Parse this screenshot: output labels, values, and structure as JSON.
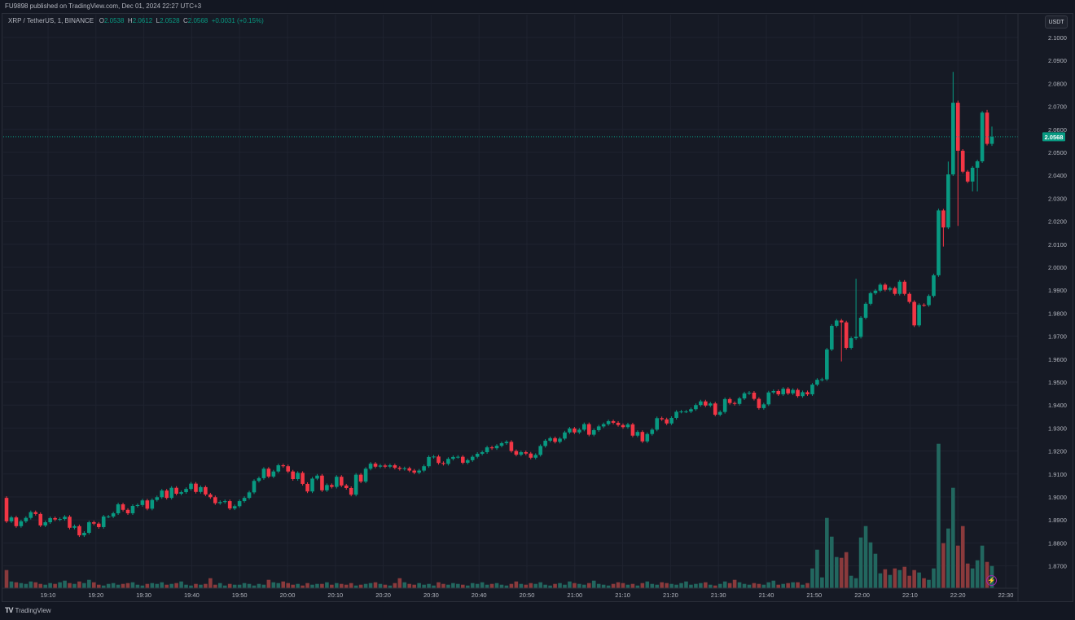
{
  "publish_line": "FU9898 published on TradingView.com, Dec 01, 2024 22:27 UTC+3",
  "legend": {
    "symbol": "XRP / TetherUS, 1, BINANCE",
    "o_label": "O",
    "o": "2.0538",
    "h_label": "H",
    "h": "2.0612",
    "l_label": "L",
    "l": "2.0528",
    "c_label": "C",
    "c": "2.0568",
    "change": "+0.0031 (+0.15%)"
  },
  "currency_button": "USDT",
  "last_price_label": "2.0568",
  "footer_brand": "TradingView",
  "footer_logo": "TV",
  "colors": {
    "up": "#089981",
    "down": "#f23645",
    "vol_up": "#22675f",
    "vol_down": "#8a3a3c",
    "background": "#161a25",
    "grid": "#1f2330"
  },
  "chart_data": {
    "type": "candlestick",
    "symbol": "XRP/USDT",
    "interval": "1m",
    "y_ticks": [
      "2.1000",
      "2.0900",
      "2.0800",
      "2.0700",
      "2.0600",
      "2.0500",
      "2.0400",
      "2.0300",
      "2.0200",
      "2.0100",
      "2.0000",
      "1.9900",
      "1.9800",
      "1.9700",
      "1.9600",
      "1.9500",
      "1.9400",
      "1.9300",
      "1.9200",
      "1.9100",
      "1.9000",
      "1.8900",
      "1.8800",
      "1.8700"
    ],
    "x_ticks": [
      "19:10",
      "19:20",
      "19:30",
      "19:40",
      "19:50",
      "20:00",
      "20:10",
      "20:20",
      "20:30",
      "20:40",
      "20:50",
      "21:00",
      "21:10",
      "21:20",
      "21:30",
      "21:40",
      "21:50",
      "22:00",
      "22:10",
      "22:20",
      "22:30"
    ],
    "ylim": [
      1.87,
      2.1
    ],
    "first_open": 1.8996,
    "closes": [
      1.8894,
      1.8911,
      1.8873,
      1.8894,
      1.8909,
      1.8934,
      1.8926,
      1.8876,
      1.889,
      1.8908,
      1.8902,
      1.8904,
      1.8914,
      1.8866,
      1.8873,
      1.8833,
      1.8844,
      1.889,
      1.8884,
      1.8869,
      1.8915,
      1.8915,
      1.8929,
      1.8968,
      1.8944,
      1.8929,
      1.8961,
      1.8965,
      1.8985,
      1.8949,
      1.8987,
      1.8999,
      1.9028,
      1.8996,
      1.904,
      1.9014,
      1.9021,
      1.9035,
      1.9058,
      1.9022,
      1.9043,
      1.9011,
      1.8999,
      1.8973,
      1.8978,
      1.8982,
      1.895,
      1.896,
      1.8982,
      1.8996,
      1.902,
      1.907,
      1.9082,
      1.9123,
      1.9089,
      1.9111,
      1.9138,
      1.9134,
      1.9111,
      1.9078,
      1.9105,
      1.9057,
      1.9024,
      1.908,
      1.9093,
      1.9029,
      1.9052,
      1.9044,
      1.9088,
      1.905,
      1.9039,
      1.901,
      1.9097,
      1.9067,
      1.9123,
      1.9145,
      1.9132,
      1.9137,
      1.9132,
      1.9138,
      1.9127,
      1.9122,
      1.9125,
      1.9115,
      1.9106,
      1.9115,
      1.9134,
      1.9174,
      1.9176,
      1.9148,
      1.9144,
      1.9166,
      1.9174,
      1.9175,
      1.9149,
      1.916,
      1.9175,
      1.9188,
      1.9195,
      1.9216,
      1.9212,
      1.9223,
      1.9234,
      1.924,
      1.92,
      1.9184,
      1.9195,
      1.9189,
      1.9171,
      1.9183,
      1.9222,
      1.9245,
      1.9256,
      1.924,
      1.9254,
      1.9281,
      1.9298,
      1.9281,
      1.9293,
      1.9317,
      1.9271,
      1.9291,
      1.9307,
      1.9317,
      1.933,
      1.9323,
      1.9313,
      1.9304,
      1.9316,
      1.9267,
      1.9283,
      1.9242,
      1.9274,
      1.9293,
      1.9343,
      1.9338,
      1.932,
      1.9344,
      1.9371,
      1.9372,
      1.9372,
      1.9382,
      1.94,
      1.9416,
      1.9398,
      1.9407,
      1.9358,
      1.937,
      1.9426,
      1.9409,
      1.9405,
      1.9429,
      1.9451,
      1.9454,
      1.9427,
      1.9387,
      1.9403,
      1.9455,
      1.9461,
      1.9447,
      1.9471,
      1.9451,
      1.9466,
      1.9439,
      1.9456,
      1.9447,
      1.9489,
      1.951,
      1.9512,
      1.9642,
      1.9745,
      1.9768,
      1.976,
      1.9649,
      1.9691,
      1.9697,
      1.978,
      1.9841,
      1.9887,
      1.9898,
      1.9924,
      1.9902,
      1.9909,
      1.9884,
      1.9937,
      1.9884,
      1.9849,
      1.9747,
      1.9836,
      1.9835,
      1.9875,
      1.9965,
      2.0247,
      2.0173,
      2.0404,
      2.0716,
      2.0507,
      2.0416,
      2.0373,
      2.0433,
      2.0461,
      2.0673,
      2.0537,
      2.0568
    ],
    "wick_default": 0.0007,
    "high_overrides": {
      "175": 1.995,
      "192": 2.0255,
      "194": 2.046,
      "195": 2.085,
      "196": 2.0725,
      "201": 2.068,
      "202": 2.0685,
      "203": 2.0612
    },
    "low_overrides": {
      "172": 1.959,
      "193": 2.009,
      "196": 2.018,
      "199": 2.033,
      "200": 2.033,
      "203": 2.0528
    },
    "volumes": [
      22,
      8,
      7,
      6,
      5,
      8,
      7,
      5,
      4,
      6,
      5,
      7,
      9,
      6,
      5,
      8,
      6,
      10,
      7,
      4,
      3,
      5,
      6,
      4,
      5,
      6,
      7,
      4,
      3,
      5,
      6,
      5,
      7,
      4,
      5,
      6,
      8,
      4,
      3,
      5,
      4,
      5,
      12,
      4,
      6,
      3,
      5,
      4,
      4,
      6,
      5,
      3,
      5,
      4,
      10,
      7,
      6,
      8,
      6,
      4,
      5,
      3,
      6,
      4,
      5,
      5,
      7,
      4,
      6,
      5,
      4,
      6,
      3,
      4,
      5,
      6,
      7,
      5,
      4,
      3,
      6,
      12,
      7,
      5,
      4,
      6,
      4,
      5,
      3,
      7,
      5,
      4,
      6,
      5,
      4,
      3,
      6,
      5,
      7,
      4,
      5,
      6,
      4,
      3,
      5,
      8,
      5,
      4,
      6,
      5,
      7,
      4,
      3,
      5,
      6,
      4,
      8,
      6,
      5,
      4,
      6,
      9,
      5,
      4,
      3,
      5,
      7,
      6,
      4,
      5,
      3,
      6,
      8,
      5,
      4,
      7,
      6,
      5,
      4,
      6,
      8,
      4,
      5,
      6,
      7,
      4,
      3,
      5,
      8,
      6,
      10,
      7,
      5,
      4,
      6,
      5,
      4,
      7,
      9,
      4,
      5,
      6,
      7,
      7,
      4,
      6,
      24,
      47,
      13,
      86,
      63,
      38,
      37,
      44,
      15,
      12,
      62,
      76,
      56,
      42,
      18,
      23,
      16,
      24,
      22,
      26,
      15,
      22,
      19,
      12,
      10,
      24,
      177,
      55,
      73,
      123,
      52,
      76,
      30,
      24,
      34,
      52,
      32,
      27
    ],
    "last_price": 2.0568
  }
}
